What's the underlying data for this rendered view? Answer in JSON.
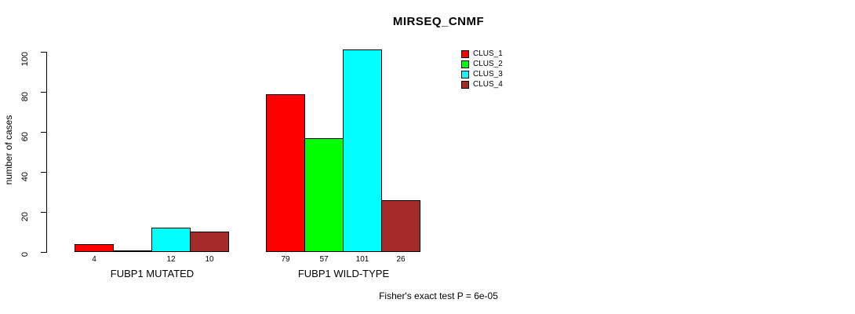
{
  "chart_data": {
    "type": "bar",
    "title": "MIRSEQ_CNMF",
    "ylabel": "number of cases",
    "xlabel": "",
    "ylim": [
      0,
      100
    ],
    "yticks": [
      0,
      20,
      40,
      60,
      80,
      100
    ],
    "grid": false,
    "legend_position": "top-right",
    "categories": [
      "FUBP1 MUTATED",
      "FUBP1 WILD-TYPE"
    ],
    "series": [
      {
        "name": "CLUS_1",
        "color": "#FF0000",
        "values": [
          4,
          79
        ],
        "bar_labels": [
          "4",
          "79"
        ]
      },
      {
        "name": "CLUS_2",
        "color": "#00FF00",
        "values": [
          0,
          57
        ],
        "bar_labels": [
          "",
          "57"
        ]
      },
      {
        "name": "CLUS_3",
        "color": "#00FFFF",
        "values": [
          12,
          101
        ],
        "bar_labels": [
          "12",
          "101"
        ]
      },
      {
        "name": "CLUS_4",
        "color": "#A52A2A",
        "values": [
          10,
          26
        ],
        "bar_labels": [
          "10",
          "26"
        ]
      }
    ],
    "footnote": "Fisher's exact test P = 6e-05"
  }
}
